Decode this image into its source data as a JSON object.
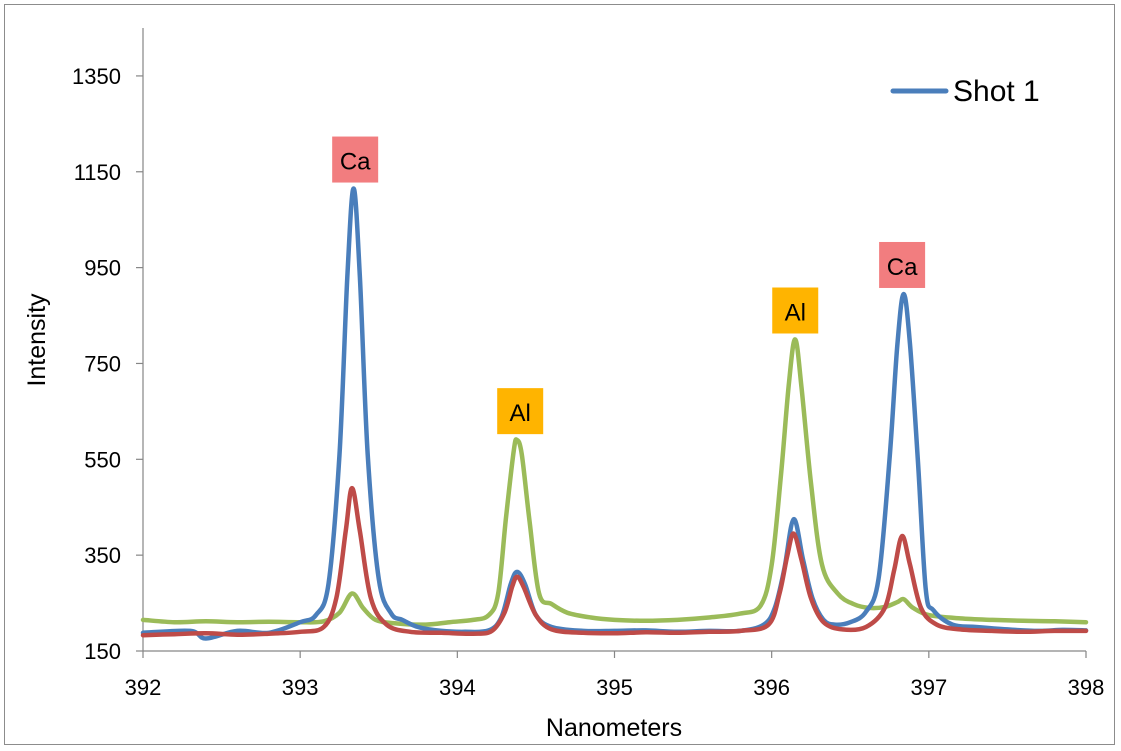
{
  "chart_data": {
    "type": "line",
    "title": "",
    "xlabel": "Nanometers",
    "ylabel": "Intensity",
    "xlim": [
      392,
      398
    ],
    "ylim": [
      150,
      1450
    ],
    "xticks": [
      "392",
      "393",
      "394",
      "395",
      "396",
      "397",
      "398"
    ],
    "yticks": [
      "150",
      "350",
      "550",
      "750",
      "950",
      "1150",
      "1350"
    ],
    "grid": false,
    "legend": {
      "position": "top-right",
      "entries": [
        "Shot 1"
      ]
    },
    "series": [
      {
        "name": "Shot 1",
        "color": "#4a7ebb",
        "points": [
          [
            392.0,
            188
          ],
          [
            392.3,
            192
          ],
          [
            392.4,
            176
          ],
          [
            392.6,
            192
          ],
          [
            392.8,
            188
          ],
          [
            393.0,
            210
          ],
          [
            393.1,
            225
          ],
          [
            393.18,
            290
          ],
          [
            393.25,
            560
          ],
          [
            393.3,
            930
          ],
          [
            393.34,
            1115
          ],
          [
            393.38,
            930
          ],
          [
            393.43,
            560
          ],
          [
            393.5,
            300
          ],
          [
            393.58,
            228
          ],
          [
            393.65,
            215
          ],
          [
            393.75,
            200
          ],
          [
            393.9,
            192
          ],
          [
            394.05,
            190
          ],
          [
            394.2,
            193
          ],
          [
            394.28,
            220
          ],
          [
            394.34,
            290
          ],
          [
            394.38,
            315
          ],
          [
            394.43,
            290
          ],
          [
            394.5,
            225
          ],
          [
            394.6,
            200
          ],
          [
            394.8,
            192
          ],
          [
            395.0,
            192
          ],
          [
            395.2,
            193
          ],
          [
            395.4,
            190
          ],
          [
            395.6,
            192
          ],
          [
            395.8,
            192
          ],
          [
            395.95,
            205
          ],
          [
            396.02,
            240
          ],
          [
            396.08,
            320
          ],
          [
            396.14,
            425
          ],
          [
            396.2,
            340
          ],
          [
            396.26,
            260
          ],
          [
            396.33,
            215
          ],
          [
            396.4,
            205
          ],
          [
            396.5,
            210
          ],
          [
            396.6,
            232
          ],
          [
            396.68,
            300
          ],
          [
            396.75,
            550
          ],
          [
            396.8,
            790
          ],
          [
            396.84,
            895
          ],
          [
            396.88,
            790
          ],
          [
            396.93,
            550
          ],
          [
            396.98,
            280
          ],
          [
            397.03,
            235
          ],
          [
            397.15,
            205
          ],
          [
            397.3,
            200
          ],
          [
            397.5,
            195
          ],
          [
            397.7,
            192
          ],
          [
            397.85,
            194
          ],
          [
            398.0,
            193
          ]
        ]
      },
      {
        "name": "",
        "color": "#be4b48",
        "points": [
          [
            392.0,
            183
          ],
          [
            392.2,
            185
          ],
          [
            392.4,
            187
          ],
          [
            392.6,
            184
          ],
          [
            392.8,
            186
          ],
          [
            393.0,
            190
          ],
          [
            393.15,
            200
          ],
          [
            393.23,
            260
          ],
          [
            393.29,
            400
          ],
          [
            393.33,
            490
          ],
          [
            393.38,
            400
          ],
          [
            393.45,
            260
          ],
          [
            393.55,
            205
          ],
          [
            393.7,
            190
          ],
          [
            393.9,
            188
          ],
          [
            394.1,
            186
          ],
          [
            394.22,
            192
          ],
          [
            394.3,
            230
          ],
          [
            394.35,
            285
          ],
          [
            394.38,
            305
          ],
          [
            394.42,
            285
          ],
          [
            394.5,
            225
          ],
          [
            394.6,
            195
          ],
          [
            394.8,
            188
          ],
          [
            395.0,
            187
          ],
          [
            395.2,
            189
          ],
          [
            395.4,
            188
          ],
          [
            395.6,
            190
          ],
          [
            395.8,
            192
          ],
          [
            395.98,
            205
          ],
          [
            396.05,
            270
          ],
          [
            396.1,
            350
          ],
          [
            396.14,
            395
          ],
          [
            396.19,
            340
          ],
          [
            396.25,
            260
          ],
          [
            396.33,
            210
          ],
          [
            396.45,
            195
          ],
          [
            396.6,
            200
          ],
          [
            396.72,
            240
          ],
          [
            396.78,
            320
          ],
          [
            396.83,
            390
          ],
          [
            396.88,
            330
          ],
          [
            396.95,
            240
          ],
          [
            397.05,
            205
          ],
          [
            397.2,
            195
          ],
          [
            397.4,
            192
          ],
          [
            397.6,
            190
          ],
          [
            397.8,
            192
          ],
          [
            398.0,
            192
          ]
        ]
      },
      {
        "name": "",
        "color": "#9bbb59",
        "points": [
          [
            392.0,
            215
          ],
          [
            392.2,
            210
          ],
          [
            392.4,
            212
          ],
          [
            392.6,
            210
          ],
          [
            392.8,
            211
          ],
          [
            393.0,
            210
          ],
          [
            393.15,
            212
          ],
          [
            393.25,
            230
          ],
          [
            393.33,
            270
          ],
          [
            393.4,
            240
          ],
          [
            393.48,
            215
          ],
          [
            393.6,
            208
          ],
          [
            393.8,
            205
          ],
          [
            393.95,
            210
          ],
          [
            394.1,
            215
          ],
          [
            394.2,
            225
          ],
          [
            394.26,
            270
          ],
          [
            394.31,
            430
          ],
          [
            394.36,
            570
          ],
          [
            394.38,
            590
          ],
          [
            394.41,
            560
          ],
          [
            394.46,
            420
          ],
          [
            394.52,
            270
          ],
          [
            394.6,
            248
          ],
          [
            394.7,
            230
          ],
          [
            394.85,
            220
          ],
          [
            395.0,
            215
          ],
          [
            395.2,
            213
          ],
          [
            395.4,
            215
          ],
          [
            395.6,
            220
          ],
          [
            395.8,
            228
          ],
          [
            395.93,
            245
          ],
          [
            396.0,
            330
          ],
          [
            396.06,
            520
          ],
          [
            396.11,
            710
          ],
          [
            396.15,
            800
          ],
          [
            396.19,
            700
          ],
          [
            396.25,
            500
          ],
          [
            396.32,
            330
          ],
          [
            396.42,
            270
          ],
          [
            396.52,
            248
          ],
          [
            396.62,
            240
          ],
          [
            396.72,
            242
          ],
          [
            396.8,
            252
          ],
          [
            396.84,
            258
          ],
          [
            396.9,
            240
          ],
          [
            397.0,
            225
          ],
          [
            397.2,
            218
          ],
          [
            397.4,
            215
          ],
          [
            397.6,
            213
          ],
          [
            397.8,
            212
          ],
          [
            398.0,
            210
          ]
        ]
      }
    ],
    "annotations": [
      {
        "text": "Ca",
        "x": 393.35,
        "y": 1115,
        "color": "#f27d7f"
      },
      {
        "text": "Al",
        "x": 394.4,
        "y": 590,
        "color": "#ffb400"
      },
      {
        "text": "Al",
        "x": 396.15,
        "y": 800,
        "color": "#ffb400"
      },
      {
        "text": "Ca",
        "x": 396.83,
        "y": 895,
        "color": "#f27d7f"
      }
    ]
  }
}
